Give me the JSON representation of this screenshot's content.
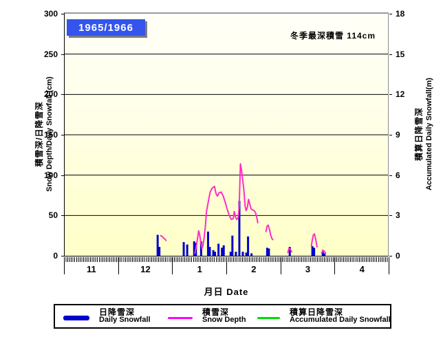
{
  "title_badge": "1965/1966",
  "annotation": "冬季最深積雪  114cm",
  "x_axis": {
    "title": "月日  Date",
    "month_labels": [
      "11",
      "12",
      "1",
      "2",
      "3",
      "4"
    ]
  },
  "left_axis": {
    "line1": "積雪深/日降雪深",
    "line2": "Snow Depth/Daily Snowfall (cm)",
    "tick_labels": [
      "0",
      "50",
      "100",
      "150",
      "200",
      "250",
      "300"
    ],
    "min": 0,
    "max": 300
  },
  "right_axis": {
    "line1": "積算日降雪深",
    "line2": "Accumulated Daily Snowfall(m)",
    "tick_labels": [
      "0",
      "3",
      "6",
      "9",
      "12",
      "15",
      "18"
    ],
    "min": 0,
    "max": 18
  },
  "legend": {
    "items": [
      {
        "jp": "日降雪深",
        "en": "Daily Snowfall",
        "color": "#0000cc",
        "style": "thick"
      },
      {
        "jp": "積雪深",
        "en": "Snow Depth",
        "color": "#ff00ff",
        "style": "thin"
      },
      {
        "jp": "積算日降雪深",
        "en": "Accumulated Daily Snowfall",
        "color": "#00dd00",
        "style": "thin"
      }
    ]
  },
  "colors": {
    "badge_bg": "#3355ee",
    "badge_text": "#ffffff",
    "bar": "#0000cc",
    "snow_depth_line": "#ff2dc8",
    "accumulated_line": "#00dd00",
    "grid": "#000000",
    "plot_bg_top": "#fffff8",
    "plot_bg_bottom": "#ffffc8"
  },
  "chart_data": {
    "type": "bar+line",
    "title": "1965/1966",
    "subtitle_annotation": "冬季最深積雪 114cm (winter maximum snow depth = 114 cm)",
    "xlabel": "月日 Date",
    "x_months_shown": [
      "11",
      "12",
      "1",
      "2",
      "3",
      "4"
    ],
    "x_encoding": "x = month_index*31 + (day-1); month_index: Nov=0, Dec=1, Jan=2, Feb=3, Mar=4, Apr=5; months drawn equal width",
    "x_range_days": [
      0,
      186
    ],
    "y_left": {
      "label": "積雪深/日降雪深 Snow Depth/Daily Snowfall (cm)",
      "range": [
        0,
        300
      ],
      "gridlines_every": 50
    },
    "y_right": {
      "label": "積算日降雪深 Accumulated Daily Snowfall (m)",
      "range": [
        0,
        18
      ],
      "ticks_every": 3
    },
    "grid": "horizontal black lines on pale-yellow plot area",
    "legend_position": "bottom, boxed",
    "series": {
      "daily_snowfall_cm": {
        "type": "bar",
        "color": "#0000cc",
        "axis": "left",
        "points": [
          [
            53,
            26
          ],
          [
            54,
            11
          ],
          [
            68,
            17
          ],
          [
            70,
            14
          ],
          [
            74,
            18
          ],
          [
            75,
            16
          ],
          [
            78,
            18
          ],
          [
            82,
            30
          ],
          [
            83,
            11
          ],
          [
            85,
            7
          ],
          [
            86,
            5
          ],
          [
            88,
            15
          ],
          [
            90,
            10
          ],
          [
            91,
            13
          ],
          [
            95,
            5
          ],
          [
            96,
            25
          ],
          [
            98,
            5
          ],
          [
            100,
            68
          ],
          [
            102,
            5
          ],
          [
            104,
            4
          ],
          [
            105,
            24
          ],
          [
            107,
            3
          ],
          [
            116,
            10
          ],
          [
            117,
            9
          ],
          [
            129,
            11
          ],
          [
            142,
            12
          ],
          [
            143,
            10
          ],
          [
            148,
            5
          ],
          [
            149,
            3
          ]
        ]
      },
      "snow_depth_cm": {
        "type": "line",
        "color": "#ff2dc8",
        "axis": "left",
        "max_value": 114,
        "segments": [
          [
            [
              55.2,
              25
            ],
            [
              56,
              24
            ],
            [
              57,
              22
            ],
            [
              58,
              20
            ],
            [
              58.3,
              19
            ]
          ],
          [
            [
              74.9,
              3
            ],
            [
              75.6,
              10
            ],
            [
              76.4,
              21
            ],
            [
              77.1,
              31
            ],
            [
              77.6,
              27
            ],
            [
              78.2,
              18
            ],
            [
              79,
              9
            ],
            [
              79.5,
              12
            ],
            [
              80.2,
              22
            ],
            [
              81,
              38
            ],
            [
              81.6,
              55
            ],
            [
              82.7,
              68
            ],
            [
              83.7,
              79
            ],
            [
              84.9,
              84
            ],
            [
              86.2,
              86
            ],
            [
              87.1,
              77
            ],
            [
              87.9,
              74
            ],
            [
              88.8,
              78
            ],
            [
              90.1,
              79
            ],
            [
              91.2,
              74
            ],
            [
              92.4,
              66
            ],
            [
              93.6,
              57
            ],
            [
              94.7,
              50
            ],
            [
              95.9,
              45
            ],
            [
              97,
              46
            ],
            [
              97.6,
              55
            ],
            [
              98.3,
              48
            ],
            [
              99,
              45
            ],
            [
              99.8,
              47
            ],
            [
              100.4,
              60
            ],
            [
              100.8,
              90
            ],
            [
              101.1,
              114
            ],
            [
              101.7,
              107
            ],
            [
              102.3,
              96
            ],
            [
              103.1,
              82
            ],
            [
              103.8,
              62
            ],
            [
              104.4,
              56
            ],
            [
              105.1,
              60
            ],
            [
              105.8,
              70
            ],
            [
              106.5,
              64
            ],
            [
              107.3,
              58
            ],
            [
              108.1,
              57
            ],
            [
              108.9,
              56
            ],
            [
              109.7,
              54
            ],
            [
              110.5,
              48
            ],
            [
              111.1,
              41
            ]
          ],
          [
            [
              115.8,
              30
            ],
            [
              116.5,
              37
            ],
            [
              117.1,
              38
            ],
            [
              117.9,
              32
            ],
            [
              118.6,
              25
            ],
            [
              119.3,
              21
            ],
            [
              119.8,
              20
            ]
          ],
          [
            [
              128.4,
              4
            ],
            [
              129,
              9
            ],
            [
              129.8,
              8
            ],
            [
              130.6,
              5
            ]
          ],
          [
            [
              141.9,
              12
            ],
            [
              142.5,
              20
            ],
            [
              143.1,
              26
            ],
            [
              143.7,
              27
            ],
            [
              144.3,
              22
            ],
            [
              144.9,
              15
            ],
            [
              145.2,
              11
            ]
          ],
          [
            [
              147.8,
              3
            ],
            [
              148.5,
              7
            ],
            [
              149.2,
              6
            ],
            [
              149.9,
              4
            ],
            [
              150.1,
              3
            ]
          ]
        ]
      },
      "accumulated_daily_snowfall_m": {
        "type": "line",
        "color": "#00dd00",
        "axis": "right",
        "points": [],
        "note": "listed in legend but no visible data drawn in plot"
      }
    }
  }
}
